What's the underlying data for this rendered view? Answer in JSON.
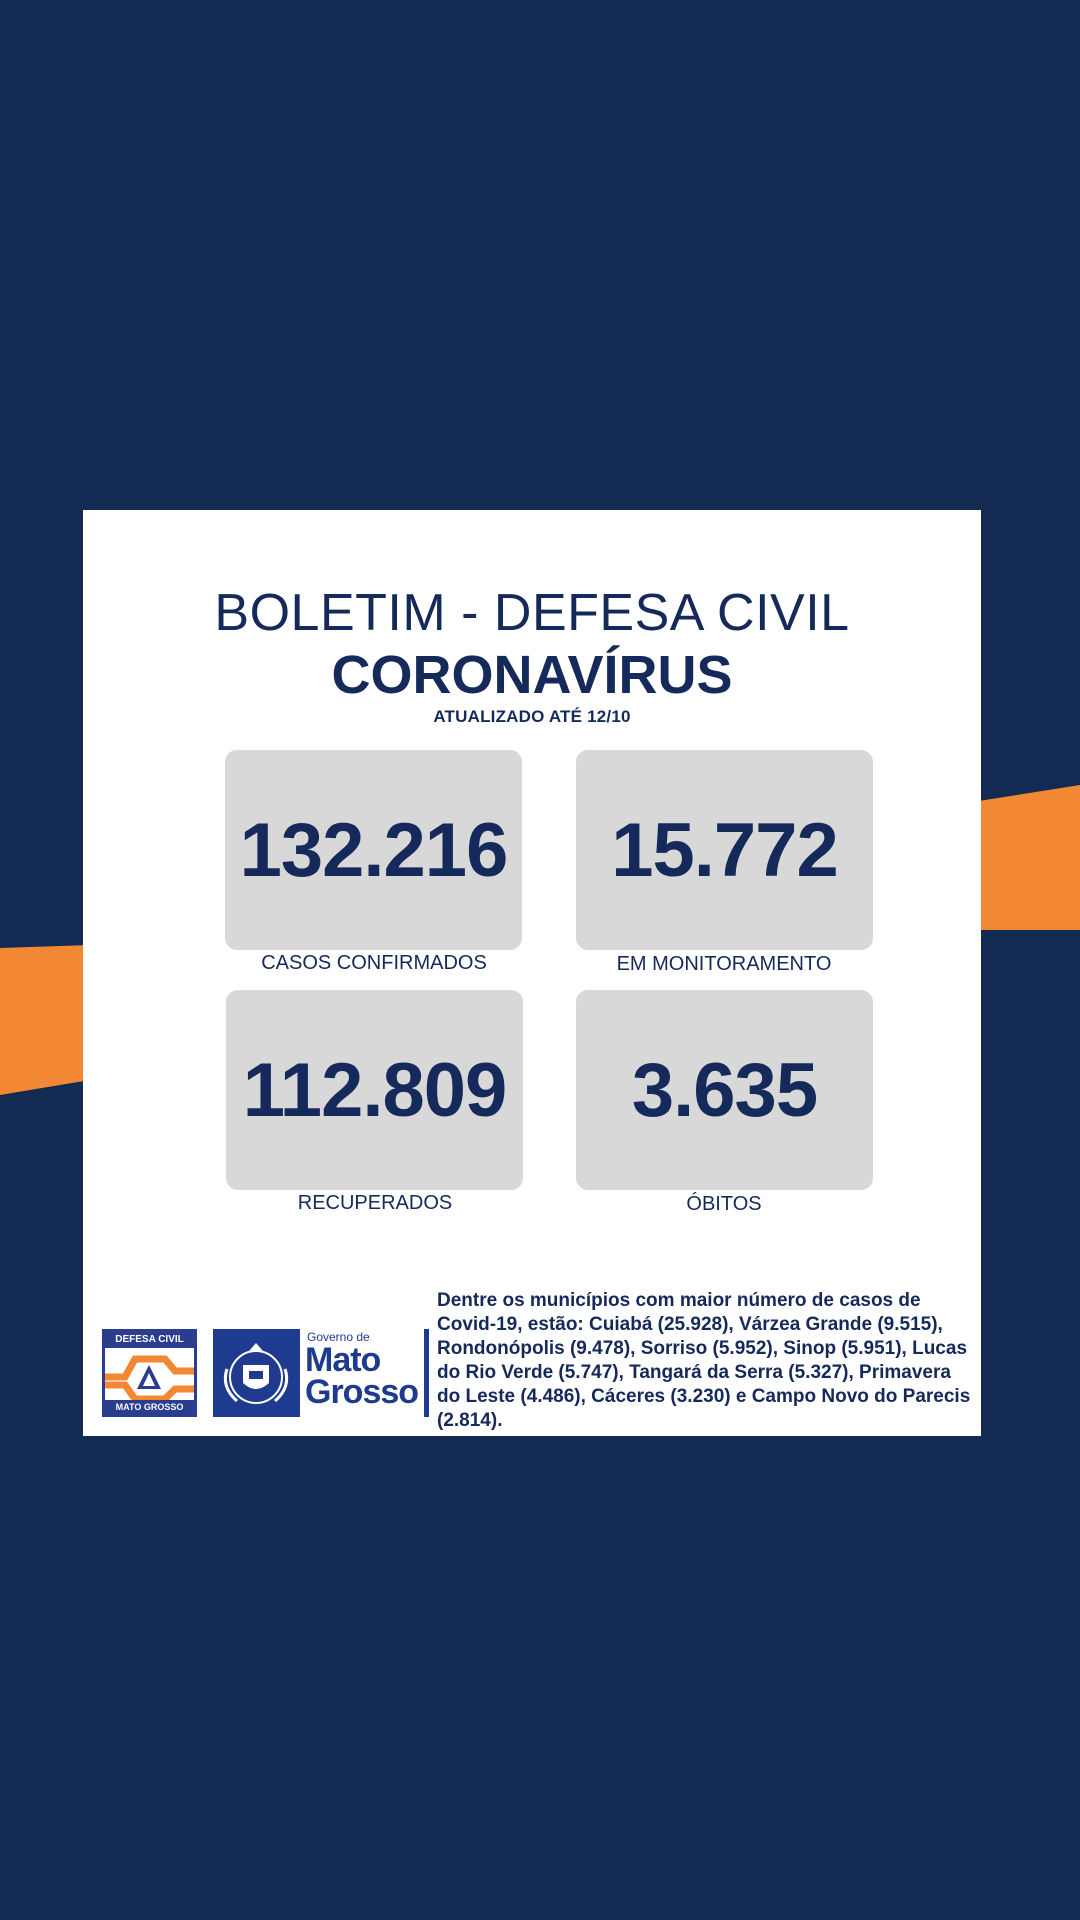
{
  "header": {
    "title": "BOLETIM - DEFESA CIVIL",
    "subtitle": "CORONAVÍRUS",
    "updated": "ATUALIZADO ATÉ 12/10"
  },
  "stats": [
    {
      "value": "132.216",
      "label": "CASOS CONFIRMADOS"
    },
    {
      "value": "15.772",
      "label": "EM MONITORAMENTO"
    },
    {
      "value": "112.809",
      "label": "RECUPERADOS"
    },
    {
      "value": "3.635",
      "label": "ÓBITOS"
    }
  ],
  "logos": {
    "defesa_top": "DEFESA CIVIL",
    "defesa_bottom": "MATO GROSSO",
    "gov_small": "Governo de",
    "gov_line1": "Mato",
    "gov_line2": "Grosso"
  },
  "description": "Dentre os municípios com maior número de casos de Covid-19, estão: Cuiabá (25.928), Várzea Grande (9.515), Rondonópolis (9.478), Sorriso (5.952), Sinop (5.951), Lucas do Rio Verde (5.747), Tangará da Serra (5.327), Primavera do Leste (4.486), Cáceres (3.230) e Campo Novo do Parecis (2.814).",
  "colors": {
    "background": "#132a52",
    "accent": "#f28834",
    "text": "#15295a",
    "box": "#d8d8d8"
  }
}
